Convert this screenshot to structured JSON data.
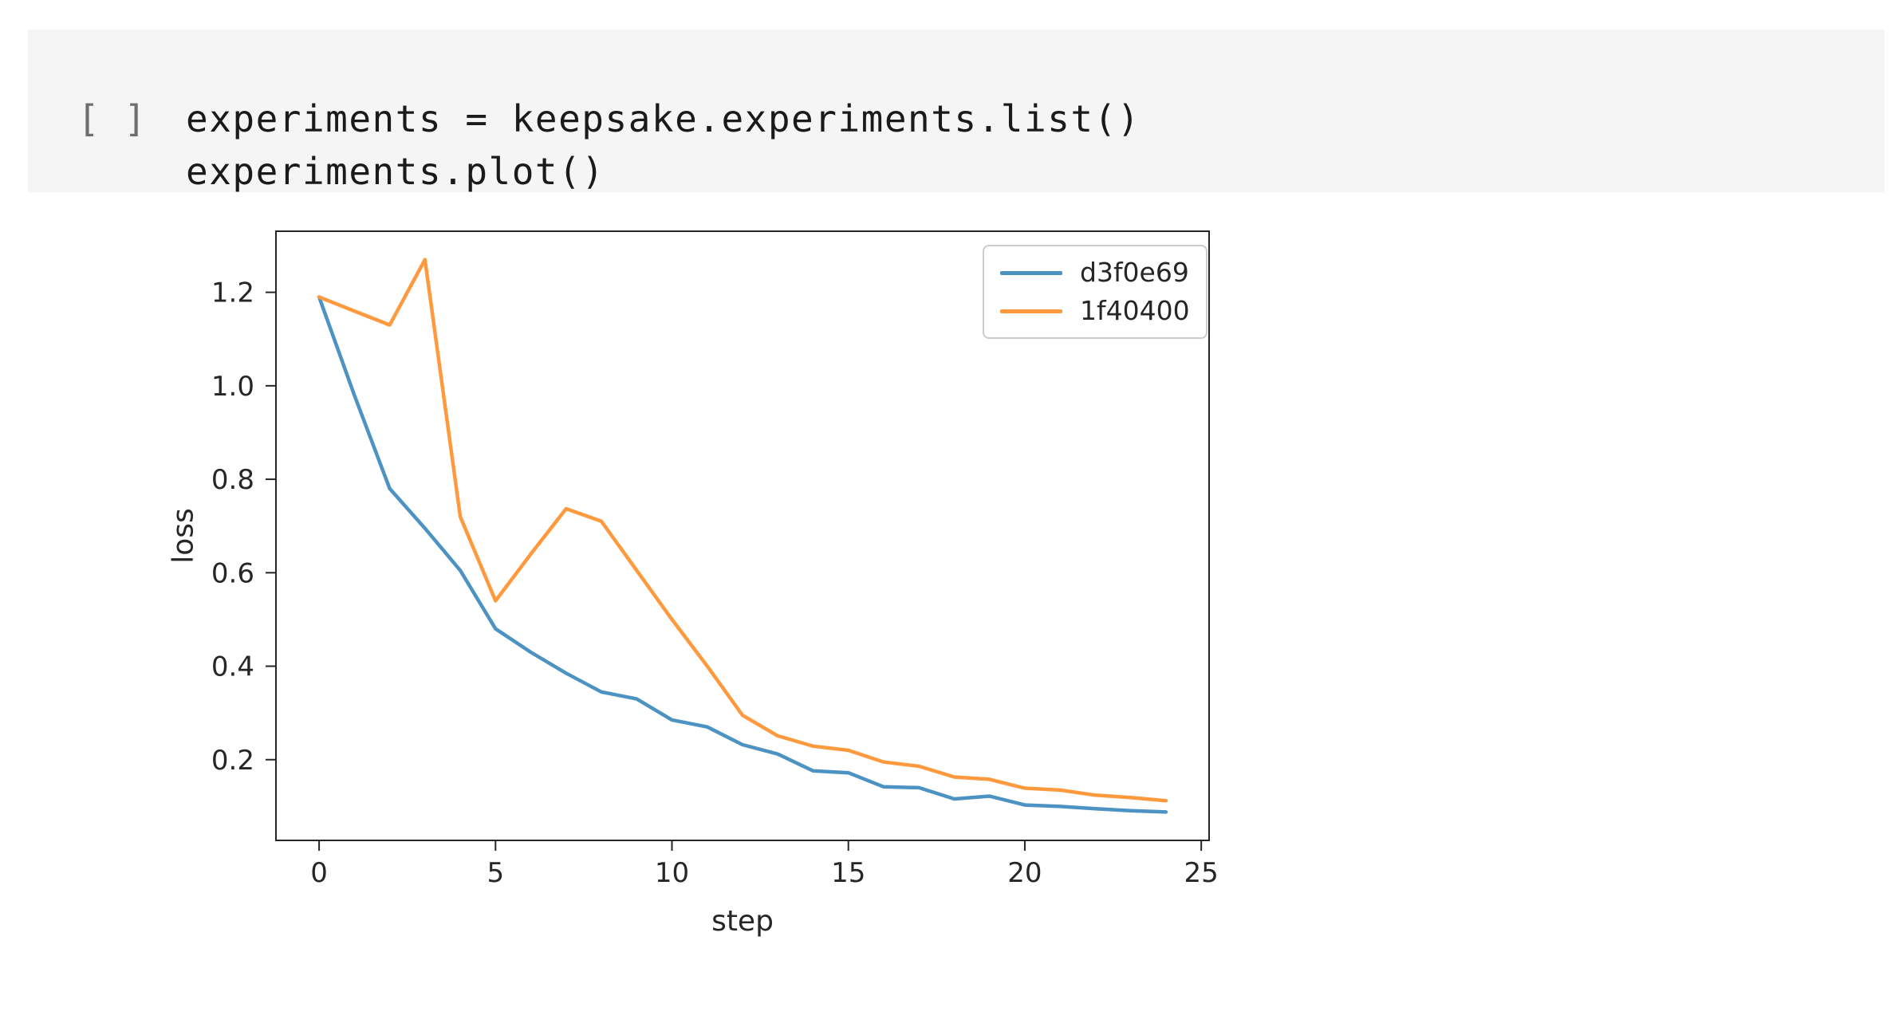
{
  "cell": {
    "prompt": "[ ]",
    "code_lines": [
      "experiments = keepsake.experiments.list()",
      "experiments.plot()"
    ],
    "background_color": "#f5f5f5",
    "prompt_color": "#6e6e6e",
    "code_color": "#1a1a1a"
  },
  "chart_data": {
    "type": "line",
    "title": "",
    "xlabel": "step",
    "ylabel": "loss",
    "x": [
      0,
      1,
      2,
      3,
      4,
      5,
      6,
      7,
      8,
      9,
      10,
      11,
      12,
      13,
      14,
      15,
      16,
      17,
      18,
      19,
      20,
      21,
      22,
      23,
      24
    ],
    "series": [
      {
        "name": "d3f0e69",
        "color": "#4c92c3",
        "values": [
          1.19,
          0.98,
          0.78,
          0.695,
          0.605,
          0.48,
          0.43,
          0.385,
          0.345,
          0.33,
          0.285,
          0.27,
          0.232,
          0.212,
          0.176,
          0.172,
          0.142,
          0.14,
          0.116,
          0.122,
          0.103,
          0.1,
          0.095,
          0.091,
          0.088
        ]
      },
      {
        "name": "1f40400",
        "color": "#ff993e",
        "values": [
          1.19,
          1.16,
          1.13,
          1.27,
          0.72,
          0.54,
          0.64,
          0.737,
          0.71,
          0.605,
          0.5,
          0.4,
          0.295,
          0.251,
          0.229,
          0.22,
          0.195,
          0.186,
          0.163,
          0.158,
          0.139,
          0.135,
          0.124,
          0.119,
          0.112
        ]
      }
    ],
    "xlim": [
      -1.2,
      25.2
    ],
    "ylim": [
      0.029,
      1.329
    ],
    "xticks": [
      {
        "label": "0",
        "value": 0
      },
      {
        "label": "5",
        "value": 5
      },
      {
        "label": "10",
        "value": 10
      },
      {
        "label": "15",
        "value": 15
      },
      {
        "label": "20",
        "value": 20
      },
      {
        "label": "25",
        "value": 25
      }
    ],
    "yticks": [
      {
        "label": "0.2",
        "value": 0.2
      },
      {
        "label": "0.4",
        "value": 0.4
      },
      {
        "label": "0.6",
        "value": 0.6
      },
      {
        "label": "0.8",
        "value": 0.8
      },
      {
        "label": "1.0",
        "value": 1.0
      },
      {
        "label": "1.2",
        "value": 1.2
      }
    ],
    "grid": false,
    "legend_position": "upper right",
    "axis_color": "#262626",
    "line_width": 4.5
  }
}
